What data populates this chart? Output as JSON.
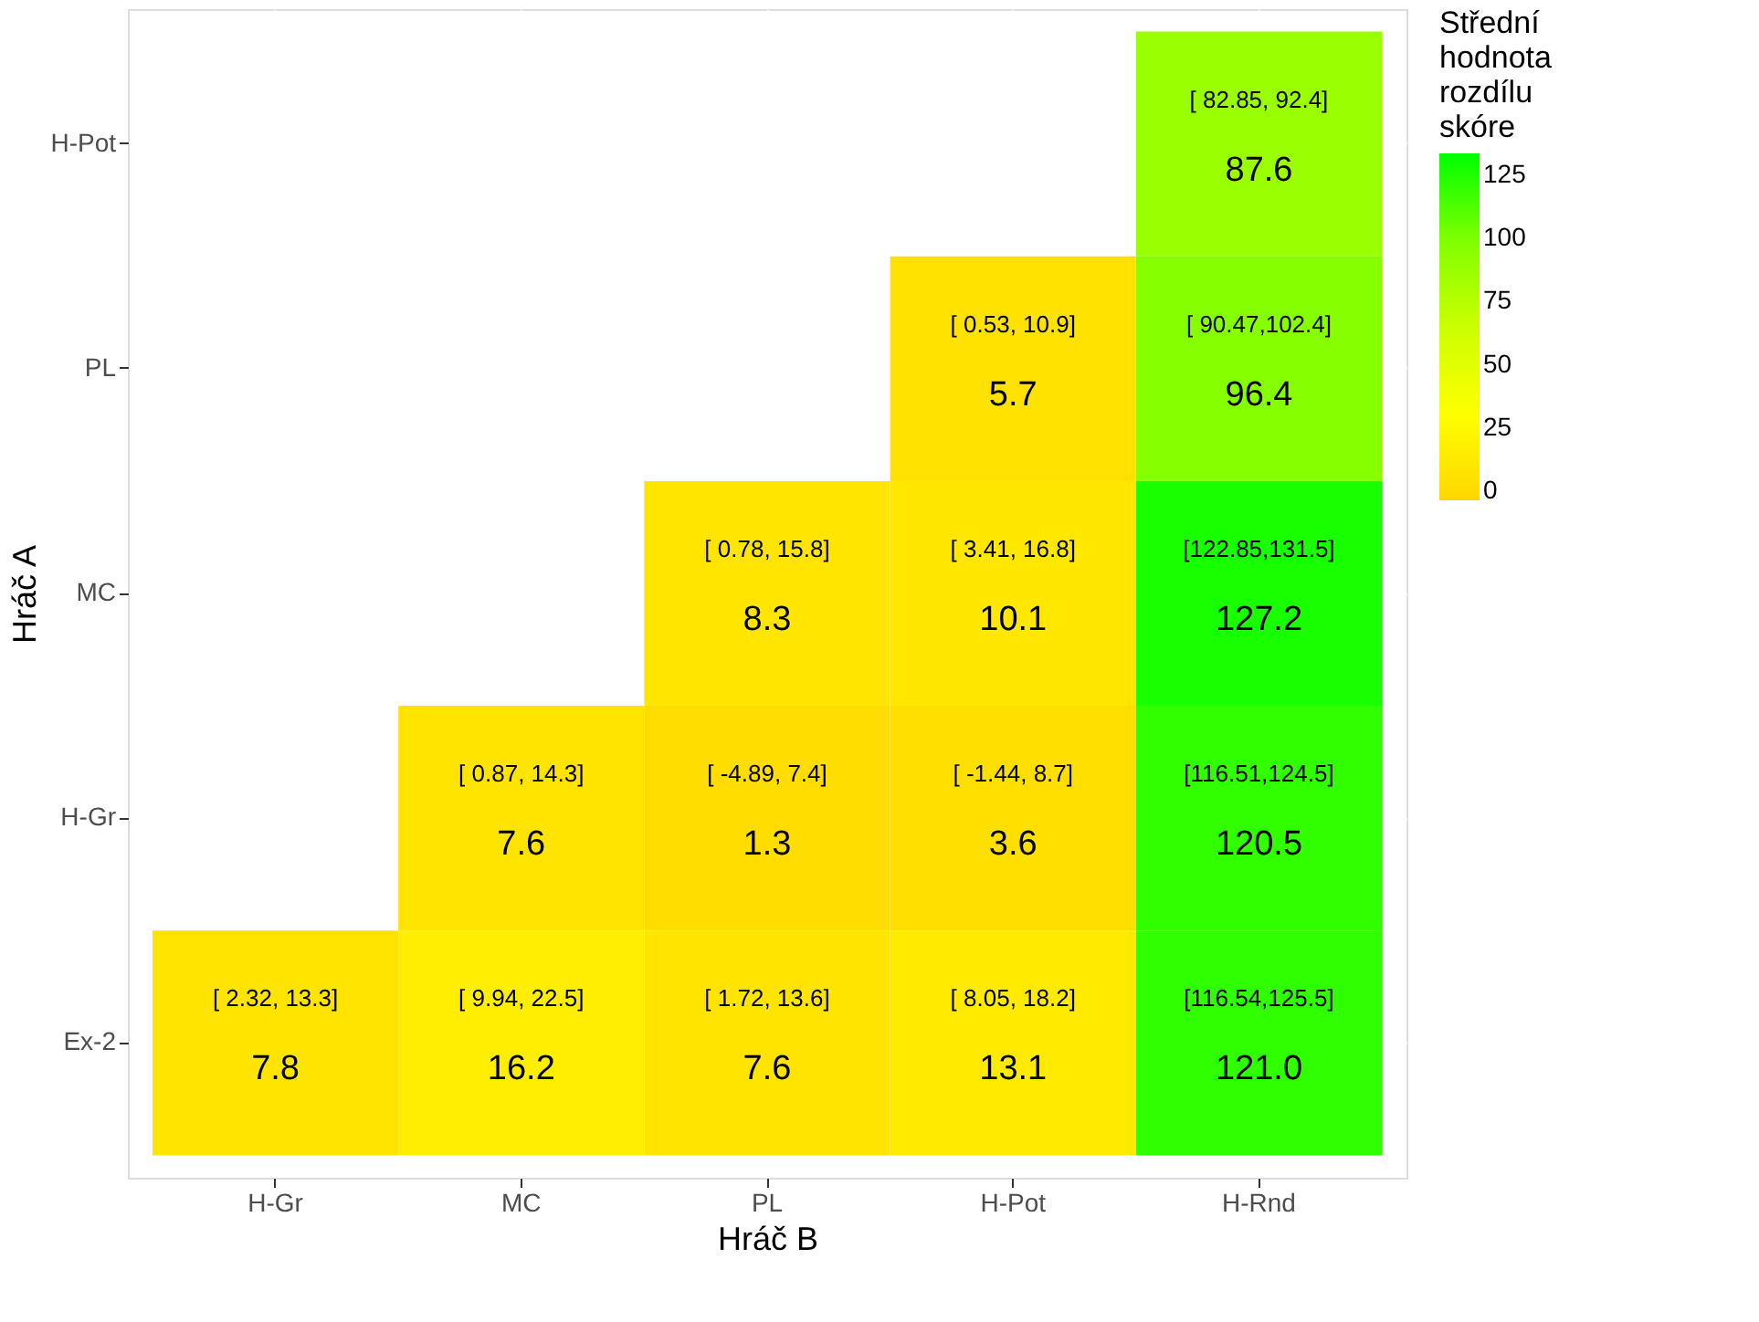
{
  "chart_data": {
    "type": "heatmap",
    "xlabel": "Hráč B",
    "ylabel": "Hráč A",
    "clabel": "Střední hodnota rozdílu skóre",
    "categories": [
      "H-Gr",
      "MC",
      "PL",
      "H-Pot",
      "H-Rnd"
    ],
    "y_categories": [
      "H-Pot",
      "PL",
      "MC",
      "H-Gr",
      "Ex-2"
    ],
    "cells": [
      [
        null,
        null,
        null,
        null,
        87.6
      ],
      [
        null,
        null,
        null,
        5.7,
        96.4
      ],
      [
        null,
        null,
        8.3,
        10.1,
        127.2
      ],
      [
        null,
        7.6,
        1.3,
        3.6,
        120.5
      ],
      [
        7.8,
        16.2,
        7.6,
        13.1,
        121.0
      ]
    ],
    "cell_labels": [
      [
        null,
        null,
        null,
        null,
        "[ 82.85, 92.4]\n87.6"
      ],
      [
        null,
        null,
        null,
        "[  0.53, 10.9]\n5.7",
        "[ 90.47,102.4]\n96.4"
      ],
      [
        null,
        null,
        "[  0.78, 15.8]\n8.3",
        "[  3.41, 16.8]\n10.1",
        "[122.85,131.5]\n127.2"
      ],
      [
        null,
        "[  0.87, 14.3]\n7.6",
        "[ -4.89,  7.4]\n1.3",
        "[ -1.44,  8.7]\n3.6",
        "[116.51,124.5]\n120.5"
      ],
      [
        "[  2.32, 13.3]\n7.8",
        "[  9.94, 22.5]\n16.2",
        "[  1.72, 13.6]\n7.6",
        "[  8.05, 18.2]\n13.1",
        "[116.54,125.5]\n121.0"
      ]
    ],
    "colors": [
      "#ffd700",
      "#ffff00",
      "#ccff00",
      "#80ff00",
      "#00ff00"
    ],
    "clim": [
      -3.5,
      133.5
    ],
    "cticks": [
      0,
      25,
      50,
      75,
      100,
      125
    ],
    "grid": true
  }
}
